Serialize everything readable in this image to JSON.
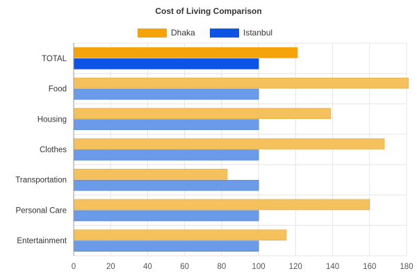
{
  "chart_data": {
    "type": "bar",
    "orientation": "horizontal",
    "title": "Cost of Living Comparison",
    "categories": [
      "TOTAL",
      "Food",
      "Housing",
      "Clothes",
      "Transportation",
      "Personal Care",
      "Entertainment"
    ],
    "series": [
      {
        "name": "Dhaka",
        "color": "#f5c15c",
        "highlight_color": "#f5a30a",
        "values": [
          121,
          181,
          139,
          168,
          83,
          160,
          115
        ]
      },
      {
        "name": "Istanbul",
        "color": "#6a9ae8",
        "highlight_color": "#0b54e6",
        "values": [
          100,
          100,
          100,
          100,
          100,
          100,
          100
        ]
      }
    ],
    "highlight_category": "TOTAL",
    "xlim": [
      0,
      180
    ],
    "x_ticks": [
      0,
      20,
      40,
      60,
      80,
      100,
      120,
      140,
      160,
      180
    ],
    "grid": true,
    "legend_position": "top"
  }
}
